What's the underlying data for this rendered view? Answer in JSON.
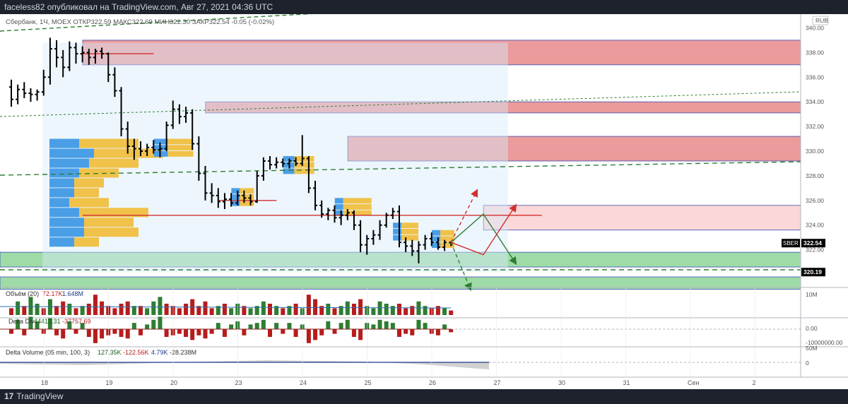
{
  "header": {
    "publisher_line": "faceless82 опубликовал на TradingView.com, Авг 27, 2021 04:36 UTC"
  },
  "footer": {
    "brand": "TradingView",
    "logo_glyph": "17"
  },
  "colors": {
    "background": "#ffffff",
    "frame": "#1e222d",
    "candle": "#000000",
    "resistance_zone": "#e88a8a",
    "resistance_zone_light": "#fbd3d3",
    "support_zone": "#7fcf8a",
    "volume_up": "#2e7d32",
    "volume_down": "#b71c1c",
    "profile_blue": "#4a9ee6",
    "profile_yellow": "#f0c24a",
    "profile_bg": "#d6eafa",
    "red_line": "#d32f2f",
    "dashed_green": "#2e7d32",
    "price_tag_bg": "#000000"
  },
  "chart_data": {
    "type": "candlestick",
    "symbol_line": "Сбербанк, 1Ч, MOEX  ОТКР322.59  МАКС322.69  МИН322.30  ЗАКР322.54  -0.05 (-0.02%)",
    "currency": "RUB",
    "ylim": [
      319.0,
      341.0
    ],
    "y_ticks": [
      "340.00",
      "338.00",
      "336.00",
      "334.00",
      "332.00",
      "330.00",
      "328.00",
      "326.00",
      "324.00",
      "322.00"
    ],
    "y_values": [
      340,
      338,
      336,
      334,
      332,
      330,
      328,
      326,
      324,
      322
    ],
    "x_ticks": [
      "18",
      "19",
      "20",
      "23",
      "24",
      "25",
      "26",
      "27",
      "30",
      "31",
      "Сен",
      "2"
    ],
    "x_tick_index": [
      0,
      10,
      20,
      30,
      40,
      50,
      60,
      70,
      80,
      90,
      100,
      110
    ],
    "last_price": {
      "label": "SBER",
      "value": "322.54"
    },
    "marked_level": {
      "value": "320.19"
    },
    "zones": [
      {
        "kind": "resistance",
        "from": 337.0,
        "to": 339.0,
        "x_start": 6
      },
      {
        "kind": "resistance",
        "from": 333.1,
        "to": 334.0,
        "x_start": 25
      },
      {
        "kind": "resistance",
        "from": 329.2,
        "to": 331.2,
        "x_start": 47
      },
      {
        "kind": "resistance_light",
        "from": 323.6,
        "to": 325.6,
        "x_start": 68
      },
      {
        "kind": "support",
        "from": 320.6,
        "to": 321.8,
        "x_start": 0
      },
      {
        "kind": "support",
        "from": 318.8,
        "to": 319.8,
        "x_start": 0
      }
    ],
    "horizontal_lines": [
      {
        "value": 324.8,
        "from": 6,
        "to": 77,
        "color": "red"
      },
      {
        "value": 337.9,
        "from": 6,
        "to": 17,
        "color": "red"
      },
      {
        "value": 326.0,
        "from": 27,
        "to": 36,
        "color": "red"
      }
    ],
    "candles": [
      [
        335.2,
        335.8,
        333.6,
        334.2
      ],
      [
        334.2,
        335.4,
        333.8,
        335.0
      ],
      [
        335.0,
        335.6,
        334.3,
        334.7
      ],
      [
        334.7,
        335.1,
        334.0,
        334.6
      ],
      [
        334.6,
        335.0,
        334.1,
        334.8
      ],
      [
        334.8,
        336.6,
        334.5,
        336.0
      ],
      [
        336.0,
        339.2,
        335.4,
        338.3
      ],
      [
        338.3,
        339.0,
        336.8,
        337.6
      ],
      [
        337.6,
        338.2,
        336.0,
        336.8
      ],
      [
        336.8,
        338.9,
        336.5,
        338.4
      ],
      [
        338.4,
        338.8,
        337.1,
        337.9
      ],
      [
        337.9,
        338.5,
        337.2,
        338.0
      ],
      [
        338.0,
        338.3,
        337.0,
        337.6
      ],
      [
        337.6,
        338.3,
        337.1,
        338.1
      ],
      [
        338.1,
        338.4,
        337.5,
        337.9
      ],
      [
        337.9,
        338.0,
        335.6,
        336.2
      ],
      [
        336.2,
        336.8,
        334.4,
        334.9
      ],
      [
        334.9,
        335.2,
        331.2,
        331.8
      ],
      [
        331.8,
        332.4,
        329.8,
        330.4
      ],
      [
        330.4,
        331.0,
        329.3,
        330.2
      ],
      [
        330.2,
        330.8,
        329.6,
        330.0
      ],
      [
        330.0,
        330.6,
        329.6,
        330.3
      ],
      [
        330.3,
        330.9,
        329.8,
        330.1
      ],
      [
        330.1,
        330.7,
        329.5,
        330.2
      ],
      [
        330.2,
        332.4,
        330.0,
        332.1
      ],
      [
        332.1,
        334.1,
        331.8,
        333.4
      ],
      [
        333.4,
        333.8,
        332.2,
        332.8
      ],
      [
        332.8,
        333.6,
        332.3,
        333.1
      ],
      [
        333.1,
        333.4,
        330.1,
        330.6
      ],
      [
        330.6,
        331.2,
        327.6,
        328.2
      ],
      [
        328.2,
        328.8,
        326.0,
        326.6
      ],
      [
        326.6,
        327.4,
        325.8,
        326.4
      ],
      [
        326.4,
        327.0,
        325.4,
        325.9
      ],
      [
        325.9,
        326.6,
        325.3,
        326.1
      ],
      [
        326.1,
        326.6,
        325.5,
        325.8
      ],
      [
        325.8,
        326.8,
        325.6,
        326.4
      ],
      [
        326.4,
        326.8,
        325.8,
        326.2
      ],
      [
        326.2,
        326.5,
        325.6,
        325.9
      ],
      [
        325.9,
        328.4,
        325.8,
        328.0
      ],
      [
        328.0,
        329.5,
        327.6,
        329.2
      ],
      [
        329.2,
        329.6,
        328.5,
        328.9
      ],
      [
        328.9,
        329.5,
        328.6,
        329.1
      ],
      [
        329.1,
        329.4,
        328.7,
        329.0
      ],
      [
        329.0,
        329.4,
        328.6,
        329.2
      ],
      [
        329.2,
        329.5,
        328.8,
        329.0
      ],
      [
        329.0,
        331.3,
        328.8,
        329.4
      ],
      [
        329.4,
        329.6,
        326.6,
        327.0
      ],
      [
        327.0,
        327.6,
        325.2,
        325.6
      ],
      [
        325.6,
        326.0,
        324.6,
        324.9
      ],
      [
        324.9,
        325.4,
        324.4,
        325.2
      ],
      [
        325.2,
        325.6,
        324.2,
        324.6
      ],
      [
        324.6,
        325.2,
        324.0,
        324.8
      ],
      [
        324.8,
        325.3,
        324.4,
        325.0
      ],
      [
        325.0,
        325.2,
        323.6,
        324.0
      ],
      [
        324.0,
        324.4,
        321.8,
        322.4
      ],
      [
        322.4,
        323.2,
        321.6,
        322.9
      ],
      [
        322.9,
        323.6,
        322.4,
        323.2
      ],
      [
        323.2,
        324.4,
        322.8,
        324.0
      ],
      [
        324.0,
        325.0,
        323.8,
        324.8
      ],
      [
        324.8,
        325.4,
        324.5,
        325.1
      ],
      [
        325.1,
        325.6,
        322.2,
        322.6
      ],
      [
        322.6,
        323.0,
        321.8,
        322.3
      ],
      [
        322.3,
        322.8,
        321.5,
        321.9
      ],
      [
        321.9,
        322.7,
        320.9,
        322.4
      ],
      [
        322.4,
        323.2,
        322.0,
        322.9
      ],
      [
        322.9,
        323.4,
        322.3,
        322.6
      ],
      [
        322.6,
        323.0,
        322.0,
        322.2
      ],
      [
        322.2,
        322.8,
        321.9,
        322.6
      ],
      [
        322.59,
        322.69,
        322.3,
        322.54
      ]
    ],
    "projections": [
      {
        "points": [
          [
            68,
            322.6
          ],
          [
            73,
            324.9
          ],
          [
            78,
            320.9
          ]
        ],
        "color": "green"
      },
      {
        "points": [
          [
            68,
            322.6
          ],
          [
            73,
            321.6
          ],
          [
            78,
            325.6
          ]
        ],
        "color": "red"
      },
      {
        "points": [
          [
            68,
            322.6
          ],
          [
            72,
            326.8
          ]
        ],
        "color": "red",
        "dashed": true
      },
      {
        "points": [
          [
            68,
            322.6
          ],
          [
            71,
            318.8
          ]
        ],
        "color": "green",
        "dashed": true
      }
    ],
    "volume_pane": {
      "title": "Объём (20)",
      "values_text": [
        "72.17K",
        "1.648M"
      ],
      "y_ticks": [
        "10M"
      ],
      "bars": [
        3,
        6,
        4,
        8,
        5,
        3,
        7,
        4,
        6,
        5,
        3,
        4,
        5,
        9,
        6,
        4,
        3,
        5,
        6,
        4,
        4,
        3,
        6,
        8,
        5,
        4,
        3,
        5,
        7,
        4,
        6,
        3,
        4,
        5,
        3,
        5,
        4,
        3,
        4,
        6,
        5,
        4,
        3,
        4,
        5,
        3,
        9,
        7,
        4,
        5,
        3,
        4,
        6,
        5,
        7,
        4,
        3,
        6,
        5,
        4,
        5,
        3,
        4,
        6,
        4,
        3,
        4,
        3,
        2
      ],
      "direction": [
        0,
        1,
        0,
        1,
        1,
        0,
        1,
        0,
        0,
        1,
        0,
        1,
        0,
        0,
        0,
        0,
        0,
        0,
        0,
        1,
        0,
        1,
        1,
        1,
        0,
        0,
        0,
        0,
        0,
        0,
        0,
        0,
        1,
        0,
        1,
        1,
        0,
        1,
        1,
        1,
        0,
        1,
        0,
        1,
        0,
        1,
        0,
        0,
        0,
        1,
        0,
        1,
        1,
        0,
        0,
        1,
        1,
        1,
        1,
        1,
        0,
        0,
        0,
        1,
        1,
        0,
        0,
        1,
        0
      ]
    },
    "delta_pane": {
      "title": "Delta Div",
      "values_text": [
        "44412.31",
        "-37757.69"
      ],
      "y_ticks": [
        "0.00",
        "-10000000.00"
      ]
    },
    "delta_volume_pane": {
      "title": "Delta Volume (05 min, 100, 3)",
      "values_text": [
        "127.35K",
        "-122.56K",
        "4.79K",
        "-28.238M"
      ],
      "y_ticks": [
        "50M",
        "0"
      ]
    }
  }
}
